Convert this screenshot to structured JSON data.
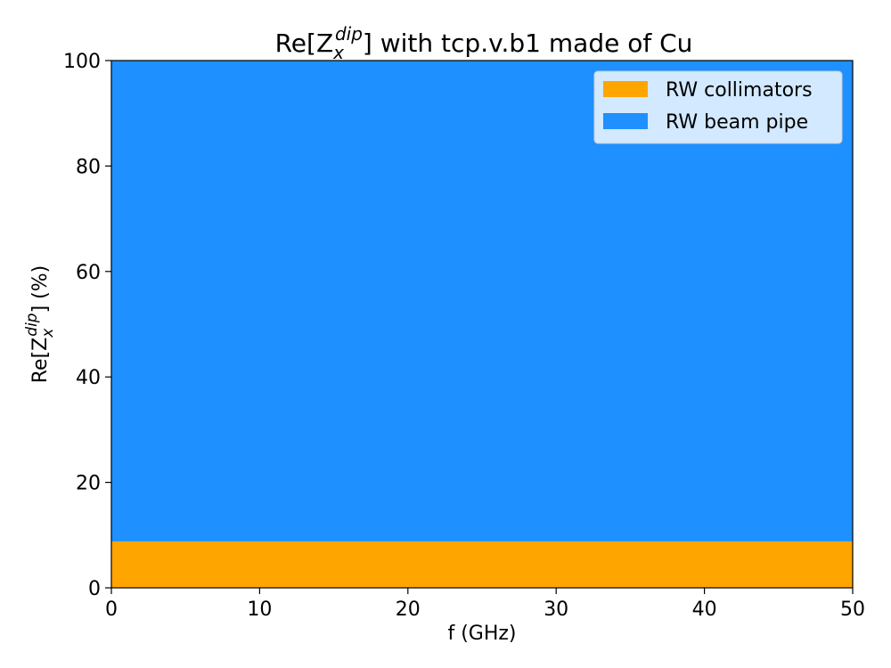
{
  "chart_data": {
    "type": "area",
    "stacked": true,
    "title_main": "Re[Z",
    "title_sub": "x",
    "title_sup": "dip",
    "title_rest": "] with tcp.v.b1 made of Cu",
    "xlabel": "f (GHz)",
    "ylabel_main": "Re[Z",
    "ylabel_sub": "x",
    "ylabel_sup": "dip",
    "ylabel_rest": "] (%)",
    "xlim": [
      0,
      50
    ],
    "ylim": [
      0,
      100
    ],
    "xticks": [
      "0",
      "10",
      "20",
      "30",
      "40",
      "50"
    ],
    "yticks": [
      "0",
      "20",
      "40",
      "60",
      "80",
      "100"
    ],
    "x": [
      0,
      50
    ],
    "series": [
      {
        "name": "RW collimators",
        "values": [
          8.8,
          8.8
        ],
        "color": "#FFA500"
      },
      {
        "name": "RW beam pipe",
        "values": [
          91.2,
          91.2
        ],
        "color": "#1E90FF"
      }
    ],
    "legend_position": "top-right",
    "grid": false
  }
}
